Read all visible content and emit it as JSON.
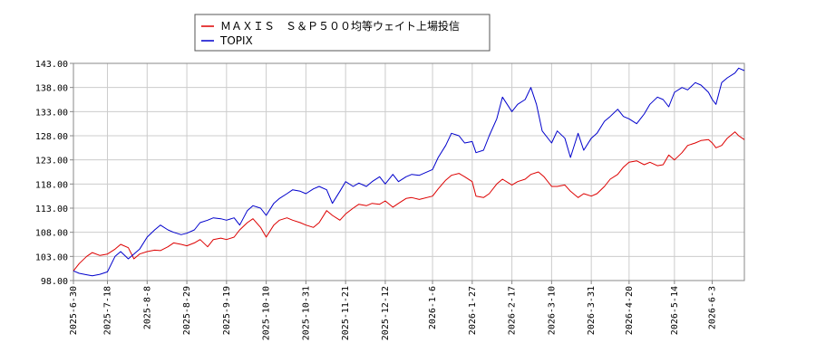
{
  "chart_data": {
    "type": "line",
    "ylim": [
      98.0,
      143.0
    ],
    "y_ticks": [
      "98.00",
      "103.00",
      "108.00",
      "113.00",
      "118.00",
      "123.00",
      "128.00",
      "133.00",
      "138.00",
      "143.00"
    ],
    "x_start": "2025-6-30",
    "x_end": "2026-6-20",
    "x_ticks": [
      "2025-6-30",
      "2025-7-18",
      "2025-8-8",
      "2025-8-29",
      "2025-9-19",
      "2025-10-10",
      "2025-10-31",
      "2025-11-21",
      "2025-12-12",
      "2026-1-6",
      "2026-1-27",
      "2026-2-17",
      "2026-3-10",
      "2026-3-31",
      "2026-4-20",
      "2026-5-14",
      "2026-6-3"
    ],
    "grid": true,
    "legend_position": "top-left",
    "series": [
      {
        "name": "ＭＡＸＩＳ　Ｓ＆Ｐ５００均等ウェイト上場投信",
        "color": "#dd0000",
        "points": [
          [
            "2025-6-30",
            100.0
          ],
          [
            "2025-7-3",
            101.5
          ],
          [
            "2025-7-7",
            103.0
          ],
          [
            "2025-7-10",
            103.8
          ],
          [
            "2025-7-14",
            103.2
          ],
          [
            "2025-7-18",
            103.5
          ],
          [
            "2025-7-22",
            104.5
          ],
          [
            "2025-7-25",
            105.5
          ],
          [
            "2025-7-29",
            104.8
          ],
          [
            "2025-8-1",
            102.5
          ],
          [
            "2025-8-4",
            103.5
          ],
          [
            "2025-8-8",
            104.0
          ],
          [
            "2025-8-12",
            104.3
          ],
          [
            "2025-8-15",
            104.2
          ],
          [
            "2025-8-19",
            105.0
          ],
          [
            "2025-8-22",
            105.8
          ],
          [
            "2025-8-26",
            105.5
          ],
          [
            "2025-8-29",
            105.2
          ],
          [
            "2025-9-2",
            105.8
          ],
          [
            "2025-9-5",
            106.5
          ],
          [
            "2025-9-9",
            105.0
          ],
          [
            "2025-9-12",
            106.5
          ],
          [
            "2025-9-16",
            106.8
          ],
          [
            "2025-9-19",
            106.5
          ],
          [
            "2025-9-23",
            107.0
          ],
          [
            "2025-9-26",
            108.5
          ],
          [
            "2025-9-30",
            110.0
          ],
          [
            "2025-10-3",
            110.8
          ],
          [
            "2025-10-7",
            109.0
          ],
          [
            "2025-10-10",
            107.0
          ],
          [
            "2025-10-14",
            109.5
          ],
          [
            "2025-10-17",
            110.5
          ],
          [
            "2025-10-21",
            111.0
          ],
          [
            "2025-10-24",
            110.5
          ],
          [
            "2025-10-28",
            110.0
          ],
          [
            "2025-10-31",
            109.5
          ],
          [
            "2025-11-4",
            109.0
          ],
          [
            "2025-11-7",
            110.0
          ],
          [
            "2025-11-11",
            112.5
          ],
          [
            "2025-11-14",
            111.5
          ],
          [
            "2025-11-18",
            110.5
          ],
          [
            "2025-11-21",
            111.8
          ],
          [
            "2025-11-25",
            113.0
          ],
          [
            "2025-11-28",
            113.8
          ],
          [
            "2025-12-2",
            113.5
          ],
          [
            "2025-12-5",
            114.0
          ],
          [
            "2025-12-9",
            113.8
          ],
          [
            "2025-12-12",
            114.5
          ],
          [
            "2025-12-16",
            113.2
          ],
          [
            "2025-12-19",
            114.0
          ],
          [
            "2025-12-23",
            115.0
          ],
          [
            "2025-12-26",
            115.2
          ],
          [
            "2025-12-30",
            114.8
          ],
          [
            "2026-1-6",
            115.5
          ],
          [
            "2026-1-9",
            117.0
          ],
          [
            "2026-1-13",
            118.8
          ],
          [
            "2026-1-16",
            119.8
          ],
          [
            "2026-1-20",
            120.2
          ],
          [
            "2026-1-23",
            119.5
          ],
          [
            "2026-1-27",
            118.5
          ],
          [
            "2026-1-29",
            115.5
          ],
          [
            "2026-2-2",
            115.2
          ],
          [
            "2026-2-5",
            116.0
          ],
          [
            "2026-2-9",
            118.0
          ],
          [
            "2026-2-12",
            119.0
          ],
          [
            "2026-2-17",
            117.8
          ],
          [
            "2026-2-20",
            118.5
          ],
          [
            "2026-2-24",
            119.0
          ],
          [
            "2026-2-27",
            120.0
          ],
          [
            "2026-3-3",
            120.5
          ],
          [
            "2026-3-6",
            119.5
          ],
          [
            "2026-3-10",
            117.5
          ],
          [
            "2026-3-13",
            117.5
          ],
          [
            "2026-3-17",
            117.8
          ],
          [
            "2026-3-20",
            116.5
          ],
          [
            "2026-3-24",
            115.2
          ],
          [
            "2026-3-27",
            116.0
          ],
          [
            "2026-3-31",
            115.5
          ],
          [
            "2026-4-3",
            116.0
          ],
          [
            "2026-4-7",
            117.5
          ],
          [
            "2026-4-10",
            119.0
          ],
          [
            "2026-4-14",
            120.0
          ],
          [
            "2026-4-17",
            121.5
          ],
          [
            "2026-4-20",
            122.5
          ],
          [
            "2026-4-24",
            122.8
          ],
          [
            "2026-4-28",
            122.0
          ],
          [
            "2026-5-1",
            122.5
          ],
          [
            "2026-5-5",
            121.8
          ],
          [
            "2026-5-8",
            122.0
          ],
          [
            "2026-5-11",
            124.0
          ],
          [
            "2026-5-14",
            123.0
          ],
          [
            "2026-5-18",
            124.5
          ],
          [
            "2026-5-21",
            126.0
          ],
          [
            "2026-5-25",
            126.5
          ],
          [
            "2026-5-28",
            127.0
          ],
          [
            "2026-6-1",
            127.2
          ],
          [
            "2026-6-3",
            126.5
          ],
          [
            "2026-6-5",
            125.5
          ],
          [
            "2026-6-8",
            126.0
          ],
          [
            "2026-6-11",
            127.5
          ],
          [
            "2026-6-15",
            128.8
          ],
          [
            "2026-6-17",
            128.0
          ],
          [
            "2026-6-20",
            127.2
          ]
        ]
      },
      {
        "name": "TOPIX",
        "color": "#0000cc",
        "points": [
          [
            "2025-6-30",
            100.0
          ],
          [
            "2025-7-3",
            99.5
          ],
          [
            "2025-7-7",
            99.2
          ],
          [
            "2025-7-10",
            99.0
          ],
          [
            "2025-7-14",
            99.3
          ],
          [
            "2025-7-18",
            99.8
          ],
          [
            "2025-7-22",
            103.0
          ],
          [
            "2025-7-25",
            104.0
          ],
          [
            "2025-7-29",
            102.5
          ],
          [
            "2025-8-1",
            103.5
          ],
          [
            "2025-8-4",
            104.5
          ],
          [
            "2025-8-8",
            107.0
          ],
          [
            "2025-8-12",
            108.5
          ],
          [
            "2025-8-15",
            109.5
          ],
          [
            "2025-8-19",
            108.5
          ],
          [
            "2025-8-22",
            108.0
          ],
          [
            "2025-8-26",
            107.5
          ],
          [
            "2025-8-29",
            107.8
          ],
          [
            "2025-9-2",
            108.5
          ],
          [
            "2025-9-5",
            110.0
          ],
          [
            "2025-9-9",
            110.5
          ],
          [
            "2025-9-12",
            111.0
          ],
          [
            "2025-9-16",
            110.8
          ],
          [
            "2025-9-19",
            110.5
          ],
          [
            "2025-9-23",
            111.0
          ],
          [
            "2025-9-26",
            109.5
          ],
          [
            "2025-9-30",
            112.5
          ],
          [
            "2025-10-3",
            113.5
          ],
          [
            "2025-10-7",
            113.0
          ],
          [
            "2025-10-10",
            111.5
          ],
          [
            "2025-10-14",
            114.0
          ],
          [
            "2025-10-17",
            115.0
          ],
          [
            "2025-10-21",
            116.0
          ],
          [
            "2025-10-24",
            116.8
          ],
          [
            "2025-10-28",
            116.5
          ],
          [
            "2025-10-31",
            116.0
          ],
          [
            "2025-11-4",
            117.0
          ],
          [
            "2025-11-7",
            117.5
          ],
          [
            "2025-11-11",
            116.8
          ],
          [
            "2025-11-14",
            114.0
          ],
          [
            "2025-11-18",
            116.5
          ],
          [
            "2025-11-21",
            118.5
          ],
          [
            "2025-11-25",
            117.5
          ],
          [
            "2025-11-28",
            118.2
          ],
          [
            "2025-12-2",
            117.5
          ],
          [
            "2025-12-5",
            118.5
          ],
          [
            "2025-12-9",
            119.5
          ],
          [
            "2025-12-12",
            118.0
          ],
          [
            "2025-12-16",
            120.0
          ],
          [
            "2025-12-19",
            118.5
          ],
          [
            "2025-12-23",
            119.5
          ],
          [
            "2025-12-26",
            120.0
          ],
          [
            "2025-12-30",
            119.8
          ],
          [
            "2026-1-6",
            121.0
          ],
          [
            "2026-1-9",
            123.5
          ],
          [
            "2026-1-13",
            126.0
          ],
          [
            "2026-1-16",
            128.5
          ],
          [
            "2026-1-20",
            128.0
          ],
          [
            "2026-1-23",
            126.5
          ],
          [
            "2026-1-27",
            126.8
          ],
          [
            "2026-1-29",
            124.5
          ],
          [
            "2026-2-2",
            125.0
          ],
          [
            "2026-2-5",
            128.0
          ],
          [
            "2026-2-9",
            131.5
          ],
          [
            "2026-2-12",
            136.0
          ],
          [
            "2026-2-17",
            133.0
          ],
          [
            "2026-2-20",
            134.5
          ],
          [
            "2026-2-24",
            135.5
          ],
          [
            "2026-2-27",
            138.0
          ],
          [
            "2026-3-2",
            134.5
          ],
          [
            "2026-3-5",
            129.0
          ],
          [
            "2026-3-10",
            126.5
          ],
          [
            "2026-3-13",
            129.0
          ],
          [
            "2026-3-17",
            127.5
          ],
          [
            "2026-3-20",
            123.5
          ],
          [
            "2026-3-24",
            128.5
          ],
          [
            "2026-3-27",
            125.0
          ],
          [
            "2026-3-31",
            127.5
          ],
          [
            "2026-4-3",
            128.5
          ],
          [
            "2026-4-7",
            131.0
          ],
          [
            "2026-4-10",
            132.0
          ],
          [
            "2026-4-14",
            133.5
          ],
          [
            "2026-4-17",
            132.0
          ],
          [
            "2026-4-20",
            131.5
          ],
          [
            "2026-4-24",
            130.5
          ],
          [
            "2026-4-28",
            132.5
          ],
          [
            "2026-5-1",
            134.5
          ],
          [
            "2026-5-5",
            136.0
          ],
          [
            "2026-5-8",
            135.5
          ],
          [
            "2026-5-11",
            134.0
          ],
          [
            "2026-5-14",
            137.0
          ],
          [
            "2026-5-18",
            138.0
          ],
          [
            "2026-5-21",
            137.5
          ],
          [
            "2026-5-25",
            139.0
          ],
          [
            "2026-5-28",
            138.5
          ],
          [
            "2026-6-1",
            137.0
          ],
          [
            "2026-6-3",
            135.5
          ],
          [
            "2026-6-5",
            134.5
          ],
          [
            "2026-6-8",
            139.0
          ],
          [
            "2026-6-11",
            140.0
          ],
          [
            "2026-6-15",
            141.0
          ],
          [
            "2026-6-17",
            142.0
          ],
          [
            "2026-6-20",
            141.5
          ]
        ]
      }
    ]
  }
}
